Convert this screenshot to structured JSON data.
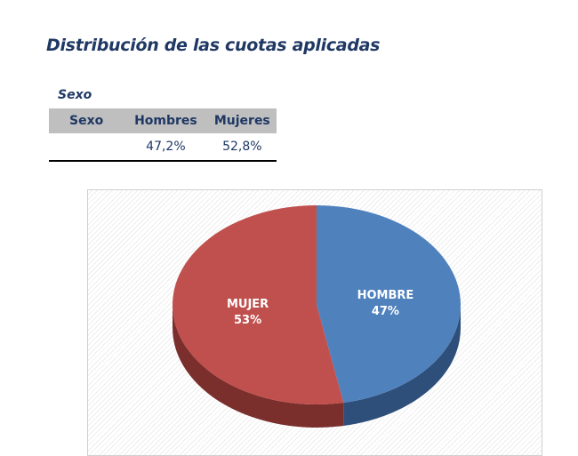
{
  "document": {
    "title": "Distribución de las cuotas aplicadas",
    "section": "Sexo"
  },
  "table": {
    "headers": [
      "Sexo",
      "Hombres",
      "Mujeres"
    ],
    "rows": [
      [
        "",
        "47,2%",
        "52,8%"
      ]
    ]
  },
  "chart_data": {
    "type": "pie",
    "title": "",
    "slices": [
      {
        "label": "HOMBRE",
        "value": 47,
        "display": "47%",
        "color": "#4f81bd",
        "side_color": "#2e4f7a"
      },
      {
        "label": "MUJER",
        "value": 53,
        "display": "53%",
        "color": "#c0504d",
        "side_color": "#7a2f2d"
      }
    ],
    "style": "3d"
  }
}
